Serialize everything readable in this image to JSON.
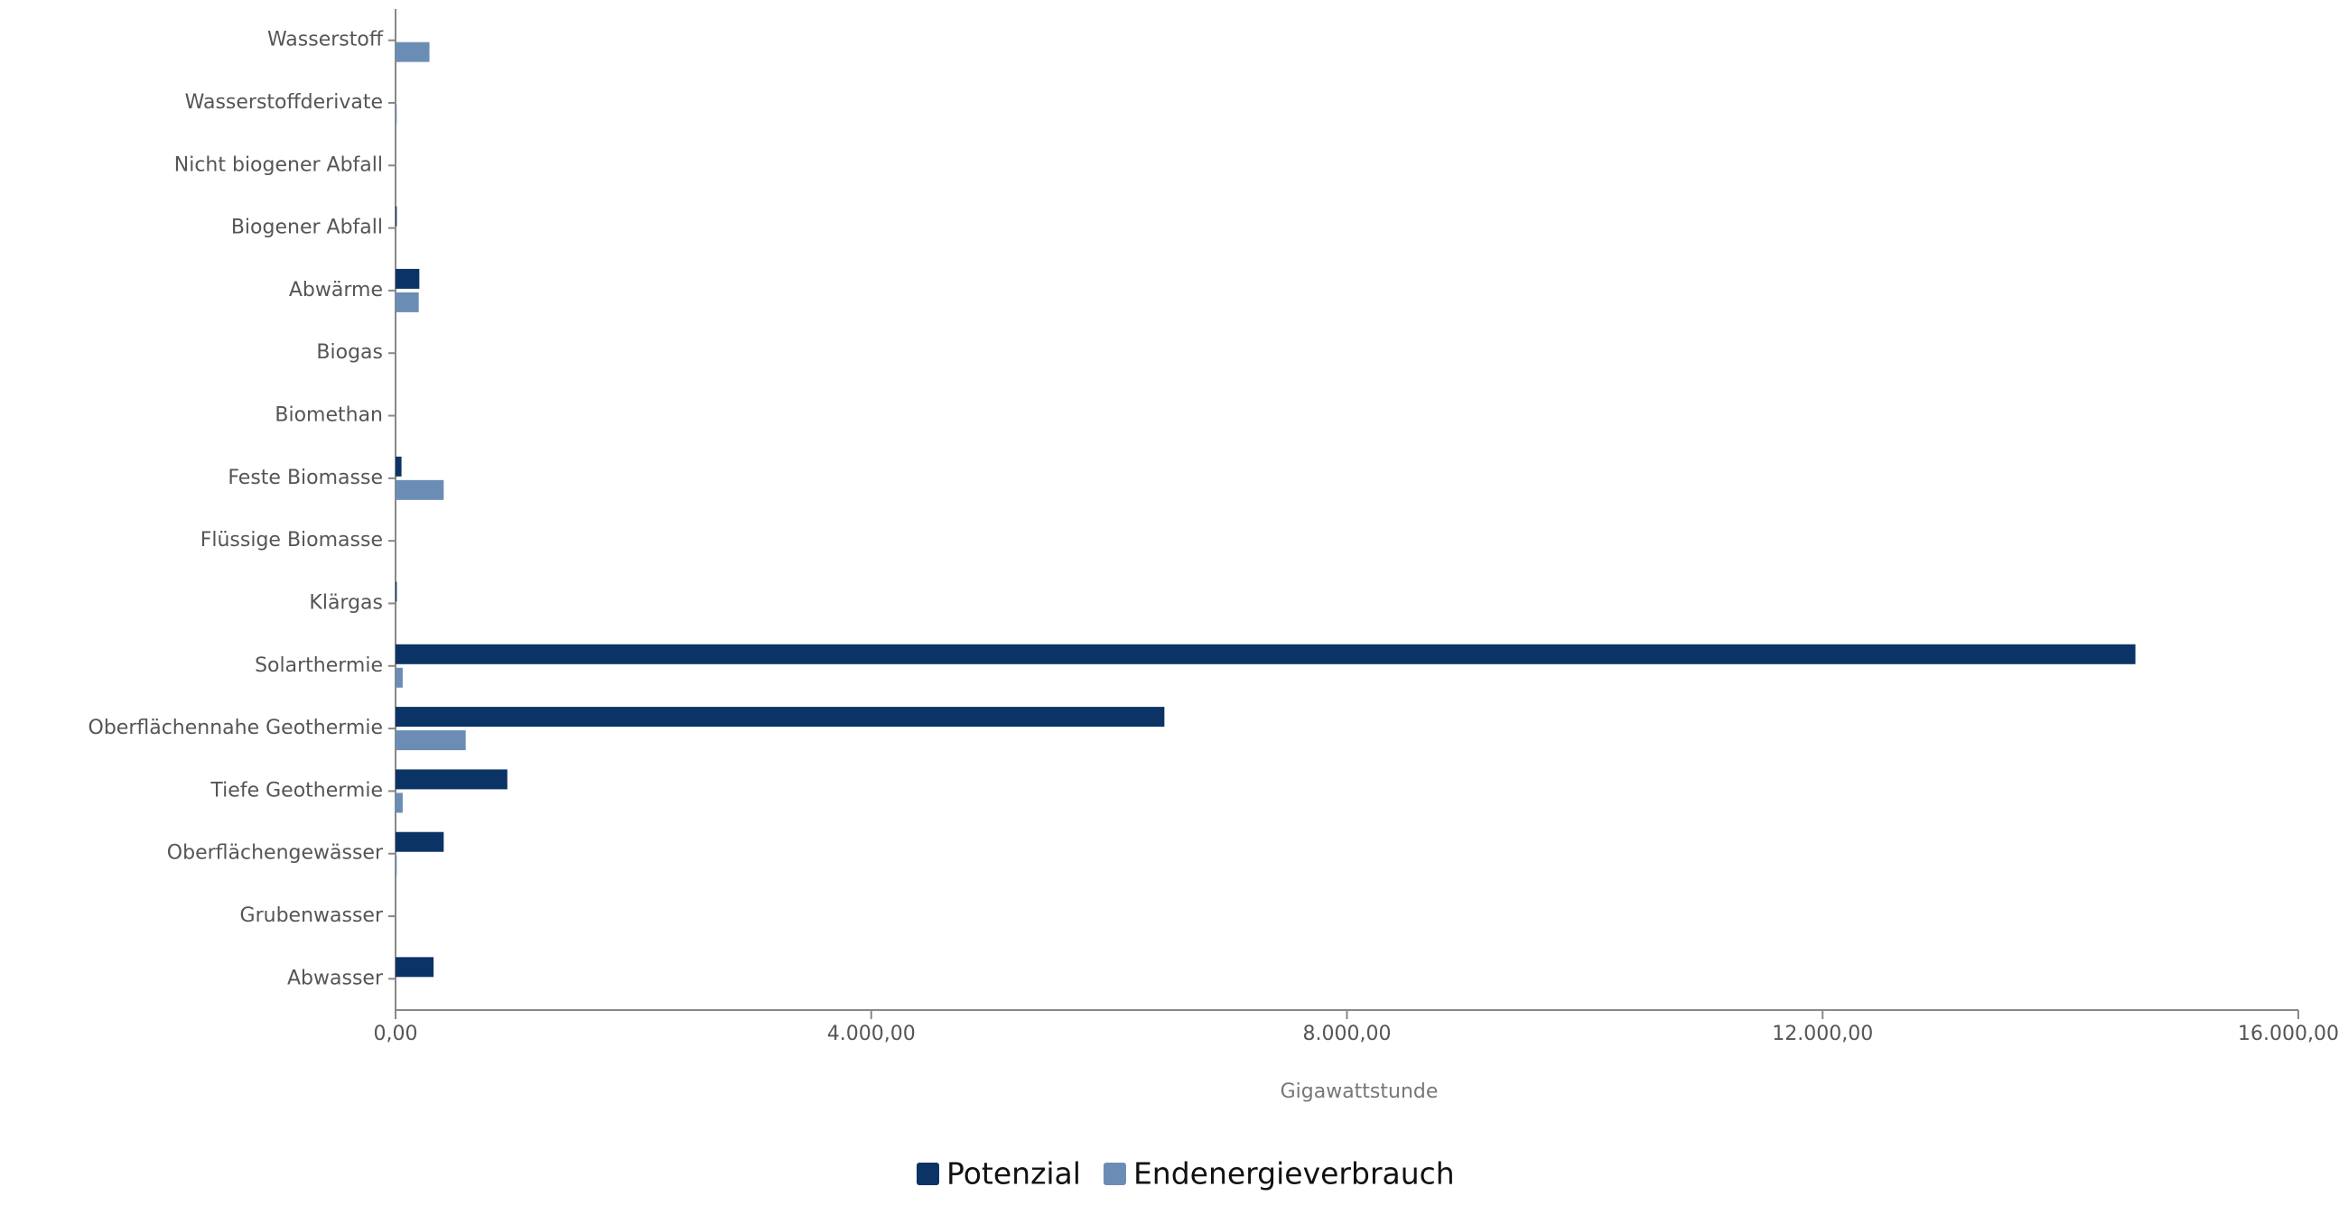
{
  "chart_data": {
    "type": "hbar",
    "x_label": "Gigawattstunde",
    "categories": [
      "Wasserstoff",
      "Wasserstoffderivate",
      "Nicht biogener Abfall",
      "Biogener Abfall",
      "Abwärme",
      "Biogas",
      "Biomethan",
      "Feste Biomasse",
      "Flüssige Biomasse",
      "Klärgas",
      "Solarthermie",
      "Oberflächennahe Geothermie",
      "Tiefe Geothermie",
      "Oberflächengewässer",
      "Grubenwasser",
      "Abwasser"
    ],
    "series": [
      {
        "name": "Potenzial",
        "color": "#0b3366",
        "values": [
          0,
          0,
          0,
          10,
          200,
          0,
          0,
          50,
          0,
          10,
          14630,
          6465,
          940,
          405,
          0,
          320
        ]
      },
      {
        "name": "Endenergieverbrauch",
        "color": "#6b8db5",
        "values": [
          285,
          10,
          0,
          0,
          195,
          0,
          0,
          405,
          0,
          0,
          60,
          590,
          60,
          10,
          0,
          0
        ]
      }
    ],
    "xlim": [
      0,
      16000
    ],
    "xticks": [
      {
        "value": 0,
        "label": "0,00"
      },
      {
        "value": 4000,
        "label": "4.000,00"
      },
      {
        "value": 8000,
        "label": "8.000,00"
      },
      {
        "value": 12000,
        "label": "12.000,00"
      },
      {
        "value": 16000,
        "label": "16.000,00"
      }
    ]
  }
}
